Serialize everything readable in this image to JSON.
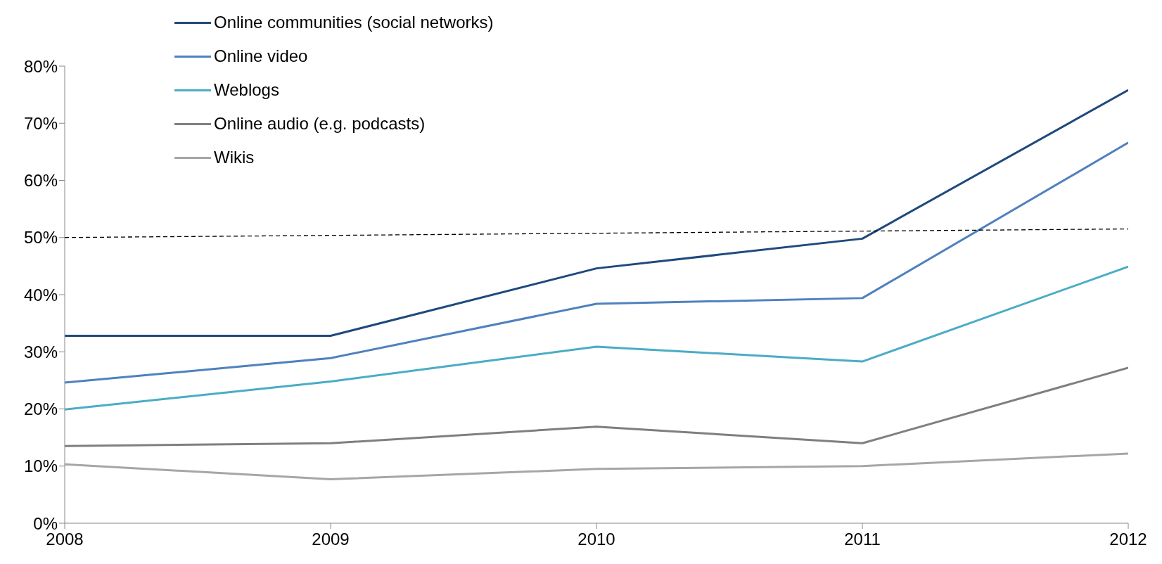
{
  "chart_data": {
    "type": "line",
    "x": [
      2008,
      2009,
      2010,
      2011,
      2012
    ],
    "series": [
      {
        "name": "Online communities (social networks)",
        "color": "#1f497d",
        "values": [
          32.8,
          32.8,
          44.6,
          49.8,
          75.8
        ]
      },
      {
        "name": "Online video",
        "color": "#4f81bd",
        "values": [
          24.6,
          28.9,
          38.4,
          39.4,
          66.6
        ]
      },
      {
        "name": "Weblogs",
        "color": "#4bacc6",
        "values": [
          19.9,
          24.8,
          30.9,
          28.3,
          44.9
        ]
      },
      {
        "name": "Online audio (e.g. podcasts)",
        "color": "#7f7f7f",
        "values": [
          13.5,
          14.0,
          16.9,
          14.0,
          27.2
        ]
      },
      {
        "name": "Wikis",
        "color": "#a6a6a6",
        "values": [
          10.3,
          7.7,
          9.5,
          10.0,
          12.2
        ]
      },
      {
        "color": "#000000",
        "x": [
          2008,
          2012
        ],
        "values": [
          50,
          51.5
        ],
        "line_style": "dashed"
      }
    ],
    "xlim": [
      2008,
      2012
    ],
    "xticks": [
      2008,
      2009,
      2010,
      2011,
      2012
    ],
    "ylim": [
      0,
      80
    ],
    "yticks": [
      {
        "value": 0,
        "label": "0%"
      },
      {
        "value": 10,
        "label": "10%"
      },
      {
        "value": 20,
        "label": "20%"
      },
      {
        "value": 30,
        "label": "30%"
      },
      {
        "value": 40,
        "label": "40%"
      },
      {
        "value": 50,
        "label": "50%"
      },
      {
        "value": 60,
        "label": "60%"
      },
      {
        "value": 70,
        "label": "70%"
      },
      {
        "value": 80,
        "label": "80%"
      }
    ],
    "legend": "top left",
    "grid": false,
    "marker": "none"
  }
}
